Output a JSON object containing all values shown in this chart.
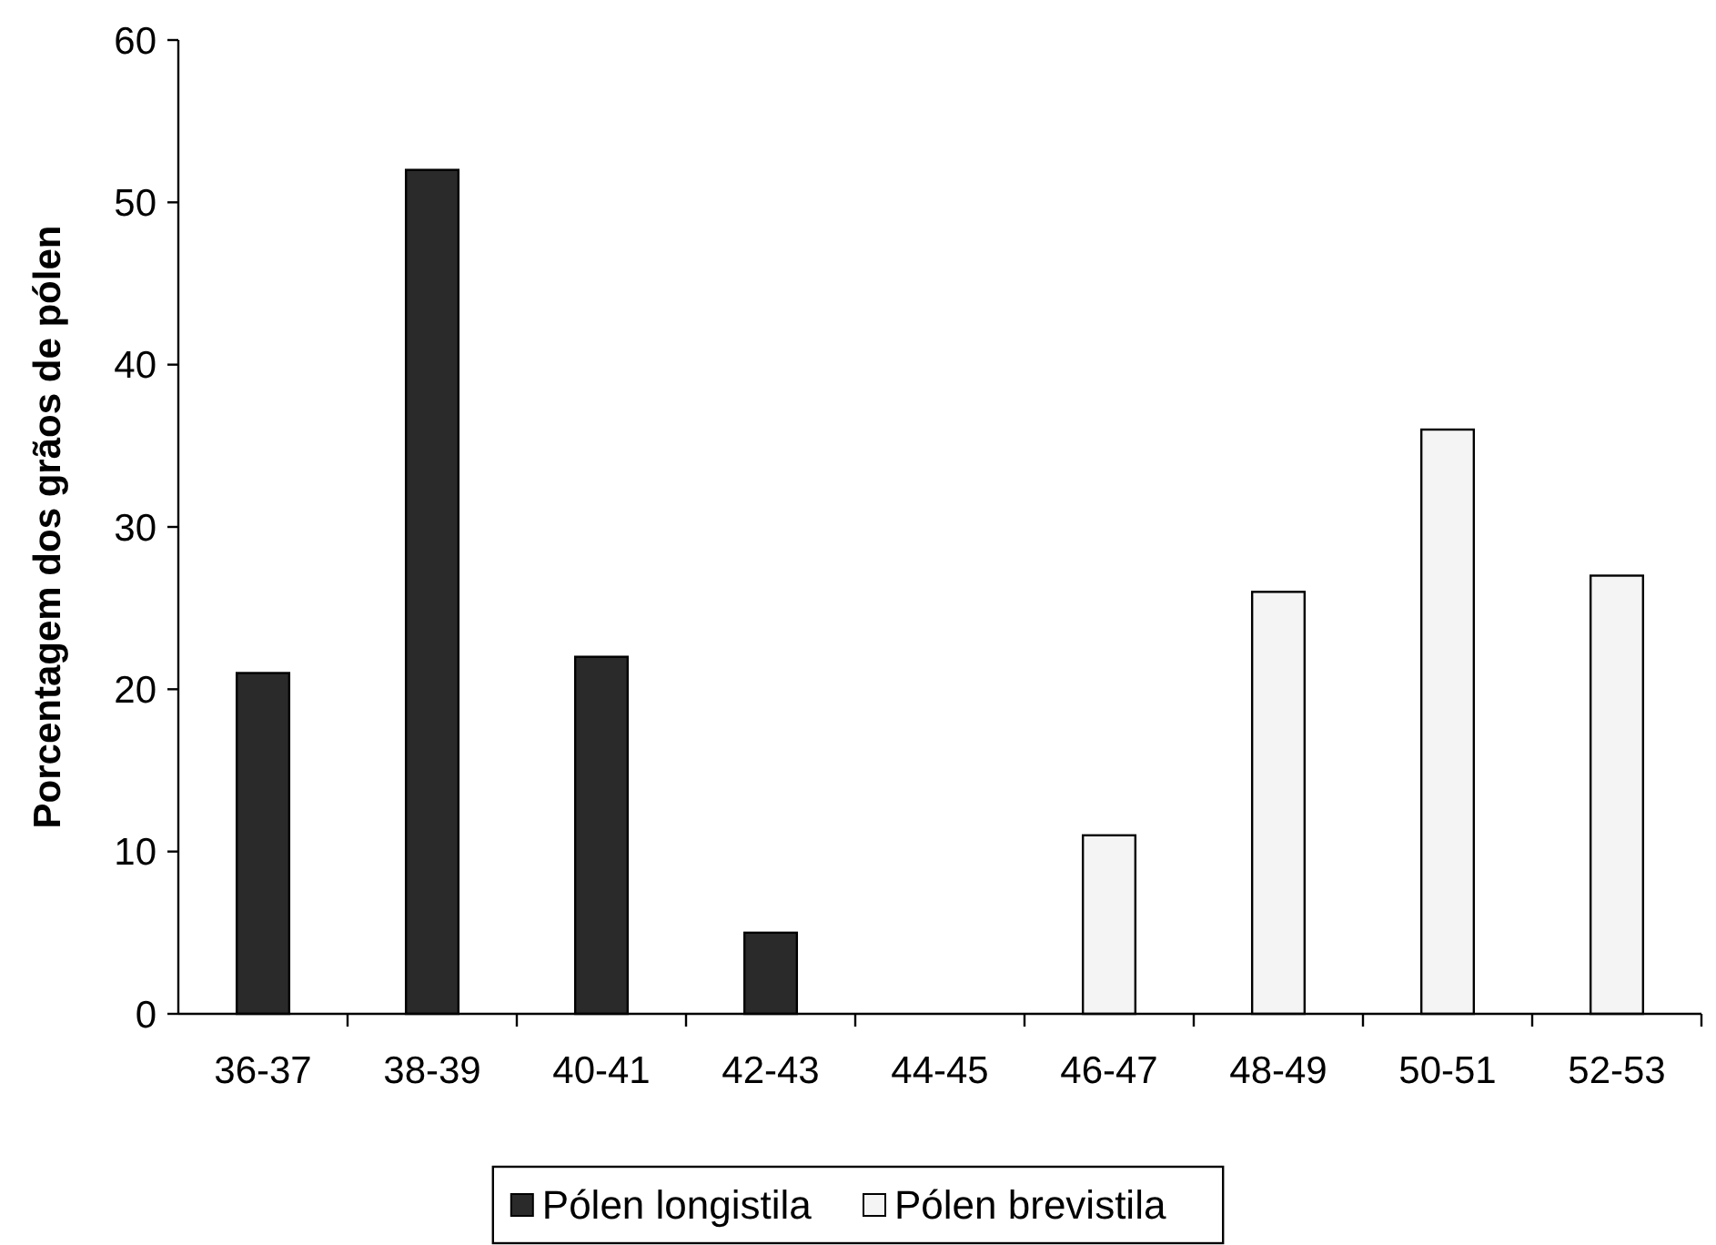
{
  "chart_data": {
    "type": "bar",
    "ylabel": "Porcentagem dos grãos de pólen",
    "categories": [
      "36-37",
      "38-39",
      "40-41",
      "42-43",
      "44-45",
      "46-47",
      "48-49",
      "50-51",
      "52-53"
    ],
    "series": [
      {
        "name": "Pólen longistila",
        "color": "#2a2a2a",
        "values": [
          21,
          52,
          22,
          5,
          null,
          null,
          null,
          null,
          null
        ]
      },
      {
        "name": "Pólen brevistila",
        "color": "#f4f4f4",
        "values": [
          null,
          null,
          null,
          null,
          null,
          11,
          26,
          36,
          27
        ]
      }
    ],
    "stacked": true,
    "ylim": [
      0,
      60
    ],
    "yticks": [
      0,
      10,
      20,
      30,
      40,
      50,
      60
    ],
    "grid": false,
    "legend": "bottom"
  }
}
